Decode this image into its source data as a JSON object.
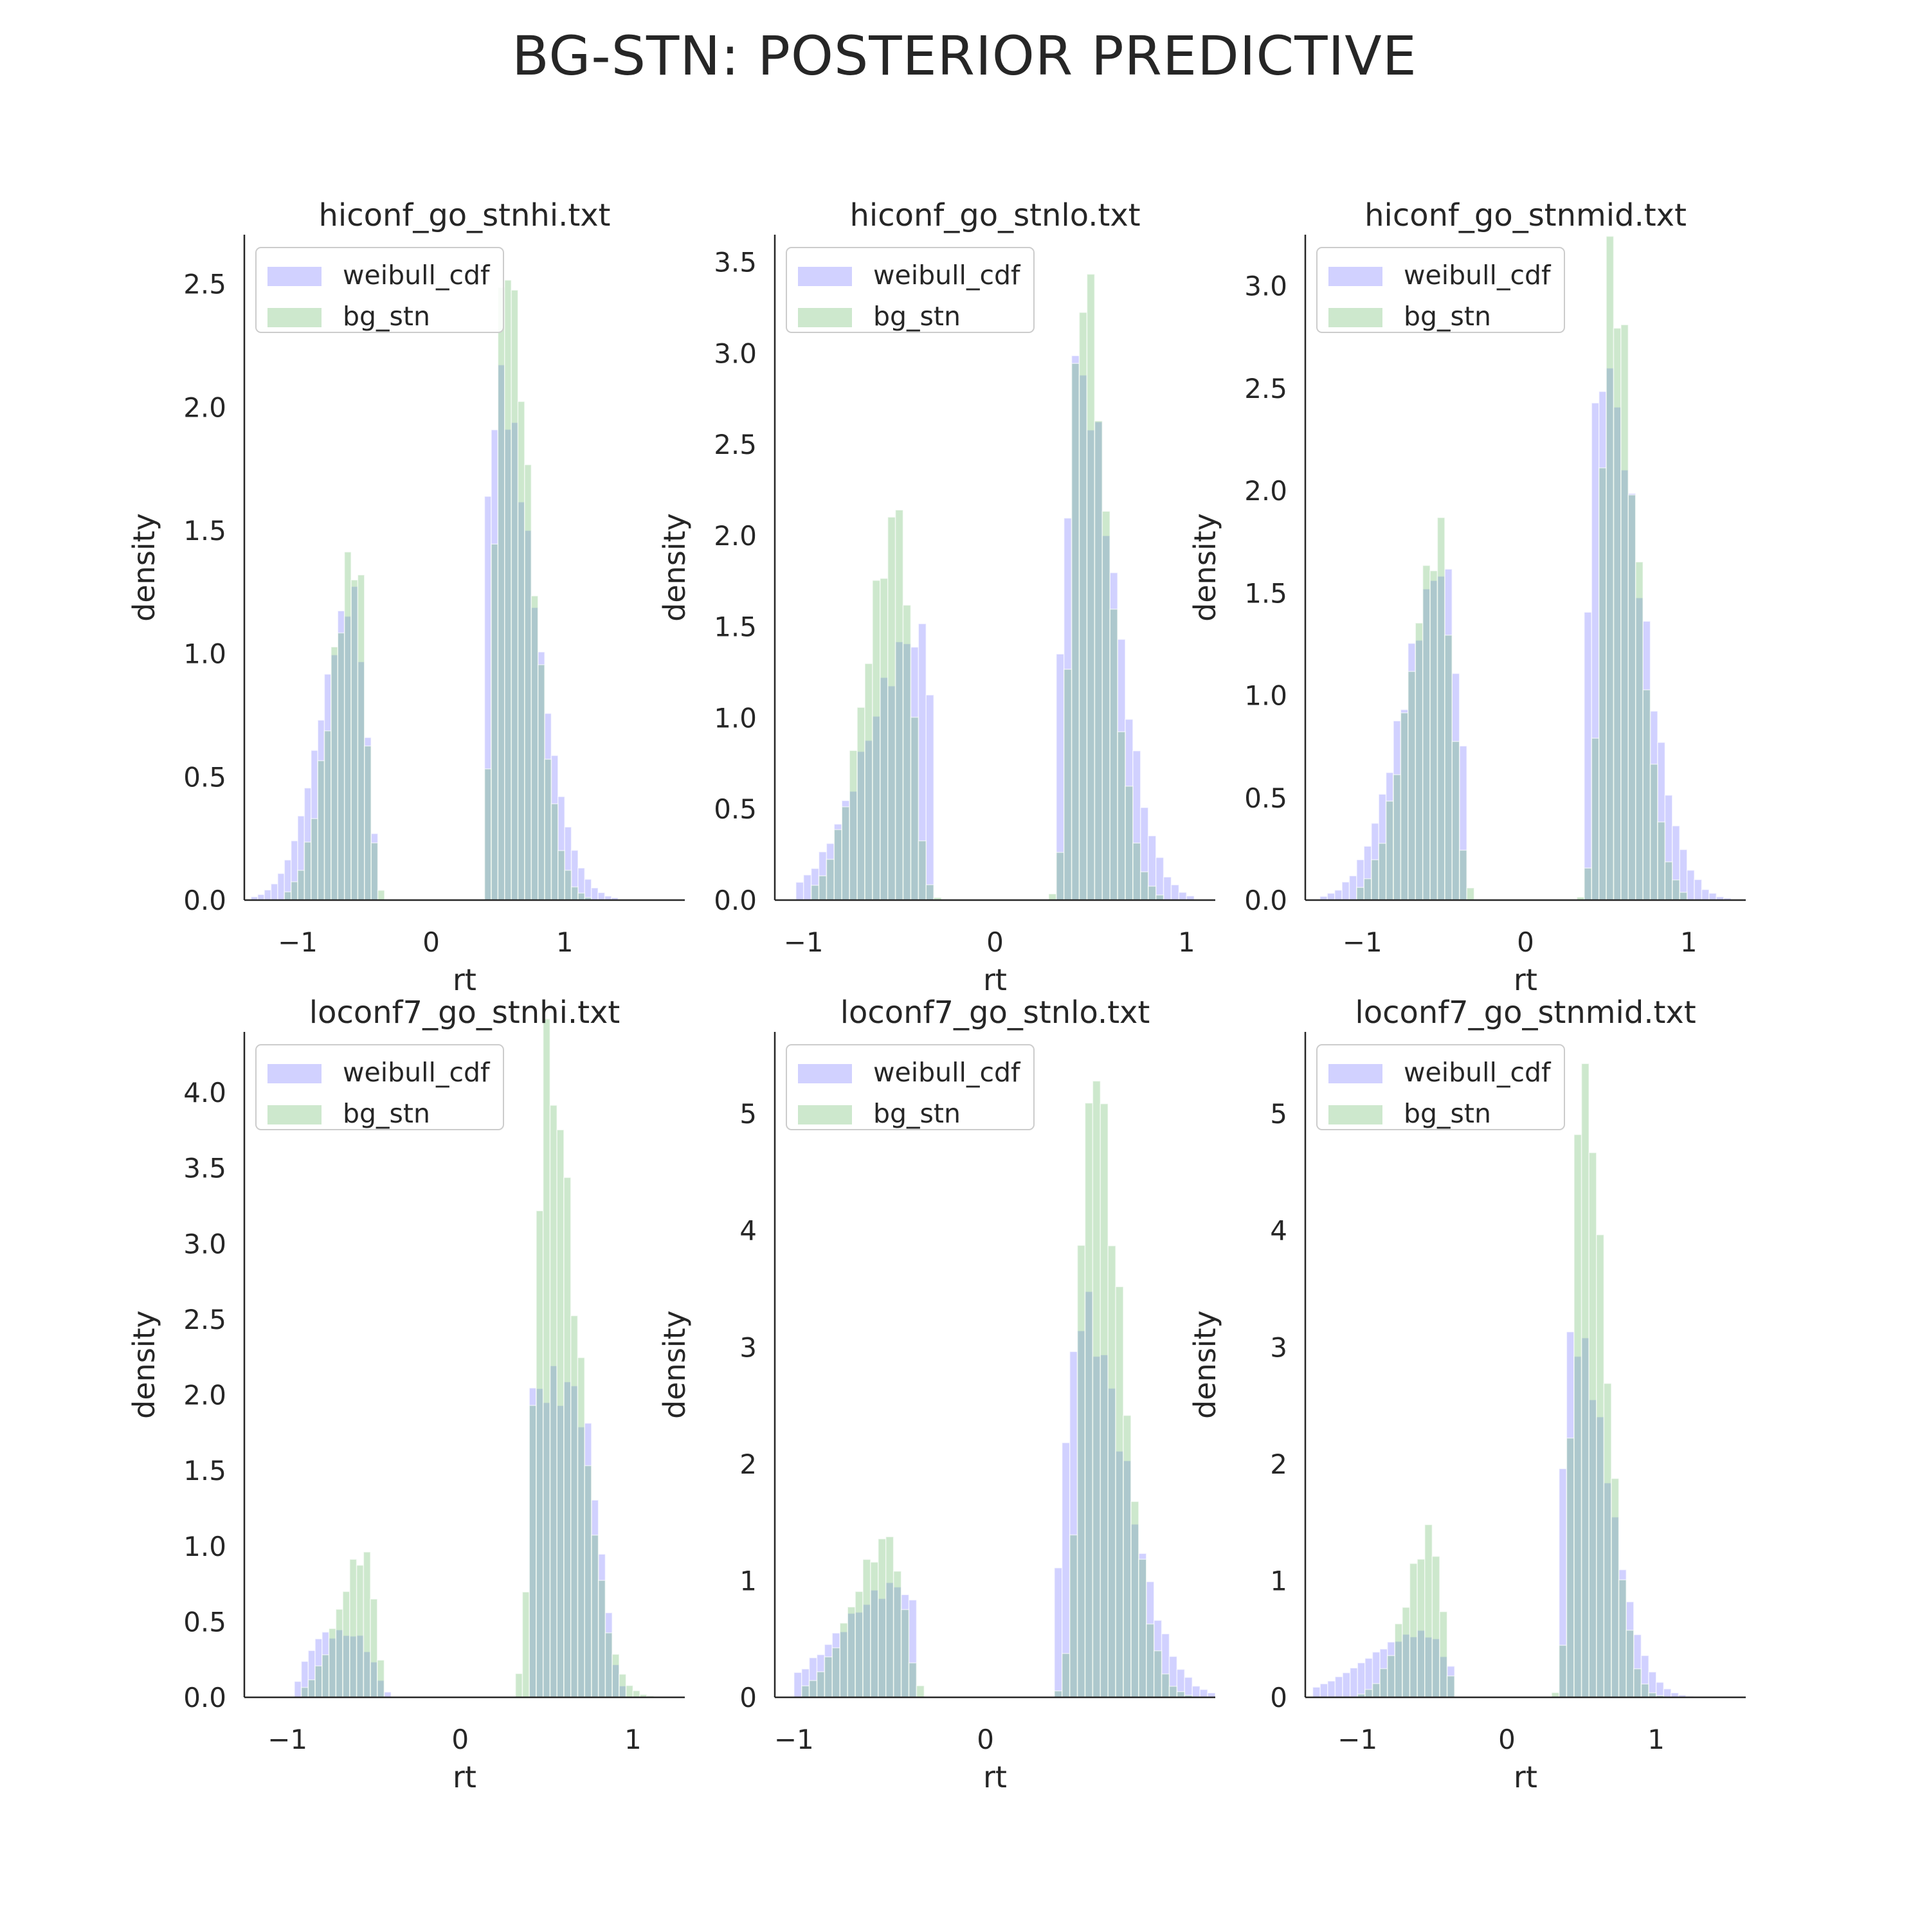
{
  "figure": {
    "title": "BG-STN: POSTERIOR PREDICTIVE"
  },
  "colors": {
    "weibull": "#6666ff",
    "bg_stn": "#59b359",
    "axis": "#262626",
    "text": "#262626"
  },
  "chart_data": [
    {
      "type": "histogram",
      "title": "hiconf_go_stnhi.txt",
      "xlabel": "rt",
      "ylabel": "density",
      "xlim": [
        -1.4,
        1.9
      ],
      "ylim": [
        0,
        2.7
      ],
      "xticks": [
        -1,
        0,
        1
      ],
      "xtick_labels": [
        "−1",
        "0",
        "1"
      ],
      "yticks": [
        0,
        0.5,
        1.0,
        1.5,
        2.0,
        2.5
      ],
      "ytick_labels": [
        "0.0",
        "0.5",
        "1.0",
        "1.5",
        "2.0",
        "2.5"
      ],
      "legend": {
        "placement": "top-left",
        "entries": [
          "weibull_cdf",
          "bg_stn"
        ]
      },
      "bin_width": 0.05,
      "series": [
        {
          "name": "weibull_cdf",
          "color_key": "weibull",
          "peaks": [
            {
              "center": -0.58,
              "sigma": 0.13,
              "height": 1.22,
              "cut_lo": -1.35,
              "cut_hi": -0.42,
              "skew": "left"
            },
            {
              "center": 0.5,
              "sigma": 0.14,
              "height": 2.08,
              "cut_lo": 0.38,
              "cut_hi": 1.8,
              "skew": "right"
            }
          ]
        },
        {
          "name": "bg_stn",
          "color_key": "bg_stn",
          "peaks": [
            {
              "center": -0.56,
              "sigma": 0.1,
              "height": 1.4,
              "cut_lo": -1.1,
              "cut_hi": -0.37,
              "skew": "left"
            },
            {
              "center": 0.55,
              "sigma": 0.1,
              "height": 2.6,
              "cut_lo": 0.38,
              "cut_hi": 1.6,
              "skew": "right"
            }
          ]
        }
      ]
    },
    {
      "type": "histogram",
      "title": "hiconf_go_stnlo.txt",
      "xlabel": "rt",
      "ylabel": "density",
      "xlim": [
        -1.15,
        1.15
      ],
      "ylim": [
        0,
        3.65
      ],
      "xticks": [
        -1,
        0,
        1
      ],
      "xtick_labels": [
        "−1",
        "0",
        "1"
      ],
      "yticks": [
        0,
        0.5,
        1.0,
        1.5,
        2.0,
        2.5,
        3.0,
        3.5
      ],
      "ytick_labels": [
        "0.0",
        "0.5",
        "1.0",
        "1.5",
        "2.0",
        "2.5",
        "3.0",
        "3.5"
      ],
      "legend": {
        "placement": "top-left",
        "entries": [
          "weibull_cdf",
          "bg_stn"
        ]
      },
      "bin_width": 0.04,
      "series": [
        {
          "name": "weibull_cdf",
          "color_key": "weibull",
          "peaks": [
            {
              "center": -0.4,
              "sigma": 0.14,
              "height": 1.45,
              "cut_lo": -1.05,
              "cut_hi": -0.32,
              "skew": "left"
            },
            {
              "center": 0.43,
              "sigma": 0.1,
              "height": 2.9,
              "cut_lo": 0.32,
              "cut_hi": 1.05,
              "skew": "right"
            }
          ]
        },
        {
          "name": "bg_stn",
          "color_key": "bg_stn",
          "peaks": [
            {
              "center": -0.5,
              "sigma": 0.09,
              "height": 2.1,
              "cut_lo": -0.95,
              "cut_hi": -0.28,
              "skew": "left"
            },
            {
              "center": 0.45,
              "sigma": 0.07,
              "height": 3.45,
              "cut_lo": 0.26,
              "cut_hi": 0.9,
              "skew": "right"
            }
          ]
        }
      ]
    },
    {
      "type": "histogram",
      "title": "hiconf_go_stnmid.txt",
      "xlabel": "rt",
      "ylabel": "density",
      "xlim": [
        -1.35,
        1.35
      ],
      "ylim": [
        0,
        3.25
      ],
      "xticks": [
        -1,
        0,
        1
      ],
      "xtick_labels": [
        "−1",
        "0",
        "1"
      ],
      "yticks": [
        0,
        0.5,
        1.0,
        1.5,
        2.0,
        2.5,
        3.0
      ],
      "ytick_labels": [
        "0.0",
        "0.5",
        "1.0",
        "1.5",
        "2.0",
        "2.5",
        "3.0"
      ],
      "legend": {
        "placement": "top-left",
        "entries": [
          "weibull_cdf",
          "bg_stn"
        ]
      },
      "bin_width": 0.045,
      "series": [
        {
          "name": "weibull_cdf",
          "color_key": "weibull",
          "peaks": [
            {
              "center": -0.5,
              "sigma": 0.13,
              "height": 1.62,
              "cut_lo": -1.25,
              "cut_hi": -0.36,
              "skew": "left"
            },
            {
              "center": 0.47,
              "sigma": 0.12,
              "height": 2.6,
              "cut_lo": 0.36,
              "cut_hi": 1.25,
              "skew": "right"
            }
          ]
        },
        {
          "name": "bg_stn",
          "color_key": "bg_stn",
          "peaks": [
            {
              "center": -0.52,
              "sigma": 0.1,
              "height": 1.75,
              "cut_lo": -1.05,
              "cut_hi": -0.33,
              "skew": "left"
            },
            {
              "center": 0.52,
              "sigma": 0.08,
              "height": 3.1,
              "cut_lo": 0.33,
              "cut_hi": 1.0,
              "skew": "right"
            }
          ]
        }
      ]
    },
    {
      "type": "histogram",
      "title": "loconf7_go_stnhi.txt",
      "xlabel": "rt",
      "ylabel": "density",
      "xlim": [
        -1.25,
        1.3
      ],
      "ylim": [
        0,
        4.4
      ],
      "xticks": [
        -1,
        0,
        1
      ],
      "xtick_labels": [
        "−1",
        "0",
        "1"
      ],
      "yticks": [
        0,
        0.5,
        1.0,
        1.5,
        2.0,
        2.5,
        3.0,
        3.5,
        4.0
      ],
      "ytick_labels": [
        "0.0",
        "0.5",
        "1.0",
        "1.5",
        "2.0",
        "2.5",
        "3.0",
        "3.5",
        "4.0"
      ],
      "legend": {
        "placement": "top-left",
        "entries": [
          "weibull_cdf",
          "bg_stn"
        ]
      },
      "bin_width": 0.04,
      "series": [
        {
          "name": "weibull_cdf",
          "color_key": "weibull",
          "peaks": [
            {
              "center": -0.7,
              "sigma": 0.14,
              "height": 0.42,
              "cut_lo": -0.95,
              "cut_hi": -0.38,
              "skew": "flat"
            },
            {
              "center": 0.55,
              "sigma": 0.18,
              "height": 2.05,
              "cut_lo": 0.4,
              "cut_hi": 0.95,
              "skew": "flat"
            }
          ]
        },
        {
          "name": "bg_stn",
          "color_key": "bg_stn",
          "peaks": [
            {
              "center": -0.55,
              "sigma": 0.08,
              "height": 0.95,
              "cut_lo": -0.9,
              "cut_hi": -0.42,
              "skew": "left"
            },
            {
              "center": 0.5,
              "sigma": 0.09,
              "height": 4.2,
              "cut_lo": 0.34,
              "cut_hi": 1.15,
              "skew": "right"
            }
          ]
        }
      ]
    },
    {
      "type": "histogram",
      "title": "loconf7_go_stnlo.txt",
      "xlabel": "rt",
      "ylabel": "density",
      "xlim": [
        -1.1,
        1.2
      ],
      "ylim": [
        0,
        5.7
      ],
      "xticks": [
        -1,
        0
      ],
      "xtick_labels": [
        "−1",
        "0"
      ],
      "yticks": [
        0,
        1,
        2,
        3,
        4,
        5
      ],
      "ytick_labels": [
        "0",
        "1",
        "2",
        "3",
        "4",
        "5"
      ],
      "legend": {
        "placement": "top-left",
        "entries": [
          "weibull_cdf",
          "bg_stn"
        ]
      },
      "bin_width": 0.04,
      "series": [
        {
          "name": "weibull_cdf",
          "color_key": "weibull",
          "peaks": [
            {
              "center": -0.45,
              "sigma": 0.16,
              "height": 0.95,
              "cut_lo": -1.0,
              "cut_hi": -0.34,
              "skew": "left"
            },
            {
              "center": 0.5,
              "sigma": 0.12,
              "height": 3.3,
              "cut_lo": 0.38,
              "cut_hi": 1.2,
              "skew": "right"
            }
          ]
        },
        {
          "name": "bg_stn",
          "color_key": "bg_stn",
          "peaks": [
            {
              "center": -0.5,
              "sigma": 0.1,
              "height": 1.35,
              "cut_lo": -0.95,
              "cut_hi": -0.3,
              "skew": "left"
            },
            {
              "center": 0.55,
              "sigma": 0.08,
              "height": 5.4,
              "cut_lo": 0.3,
              "cut_hi": 1.1,
              "skew": "right"
            }
          ]
        }
      ]
    },
    {
      "type": "histogram",
      "title": "loconf7_go_stnmid.txt",
      "xlabel": "rt",
      "ylabel": "density",
      "xlim": [
        -1.35,
        1.6
      ],
      "ylim": [
        0,
        5.7
      ],
      "xticks": [
        -1,
        0,
        1
      ],
      "xtick_labels": [
        "−1",
        "0",
        "1"
      ],
      "yticks": [
        0,
        1,
        2,
        3,
        4,
        5
      ],
      "ytick_labels": [
        "0",
        "1",
        "2",
        "3",
        "4",
        "5"
      ],
      "legend": {
        "placement": "top-left",
        "entries": [
          "weibull_cdf",
          "bg_stn"
        ]
      },
      "bin_width": 0.05,
      "series": [
        {
          "name": "weibull_cdf",
          "color_key": "weibull",
          "peaks": [
            {
              "center": -0.55,
              "sigma": 0.2,
              "height": 0.55,
              "cut_lo": -1.3,
              "cut_hi": -0.37,
              "skew": "left"
            },
            {
              "center": 0.45,
              "sigma": 0.12,
              "height": 3.1,
              "cut_lo": 0.37,
              "cut_hi": 1.5,
              "skew": "right"
            }
          ]
        },
        {
          "name": "bg_stn",
          "color_key": "bg_stn",
          "peaks": [
            {
              "center": -0.5,
              "sigma": 0.09,
              "height": 1.4,
              "cut_lo": -1.0,
              "cut_hi": -0.36,
              "skew": "left"
            },
            {
              "center": 0.5,
              "sigma": 0.08,
              "height": 5.4,
              "cut_lo": 0.3,
              "cut_hi": 1.1,
              "skew": "right"
            }
          ]
        }
      ]
    }
  ]
}
